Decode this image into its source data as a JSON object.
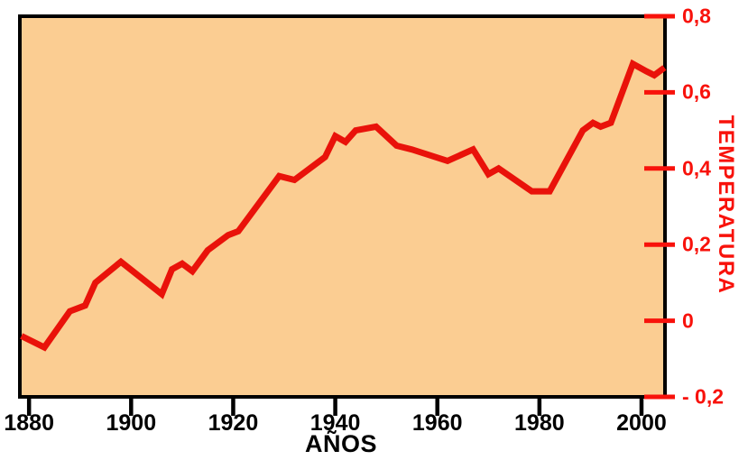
{
  "chart_data": {
    "type": "line",
    "title": "",
    "xlabel": "AÑOS",
    "ylabel": "TEMPERATURA",
    "xlim": [
      1878.2,
      2004.6
    ],
    "ylim": [
      -0.2,
      0.8
    ],
    "grid": false,
    "legend": false,
    "x_ticks": [
      {
        "value": 1880,
        "label": "1880"
      },
      {
        "value": 1900,
        "label": "1900"
      },
      {
        "value": 1920,
        "label": "1920"
      },
      {
        "value": 1940,
        "label": "1940"
      },
      {
        "value": 1960,
        "label": "1960"
      },
      {
        "value": 1980,
        "label": "1980"
      },
      {
        "value": 2000,
        "label": "2000"
      }
    ],
    "y_ticks": [
      {
        "value": 0.8,
        "label": "0,8"
      },
      {
        "value": 0.6,
        "label": "0,6"
      },
      {
        "value": 0.4,
        "label": "0,4"
      },
      {
        "value": 0.2,
        "label": "0,2"
      },
      {
        "value": 0,
        "label": "0"
      },
      {
        "value": -0.2,
        "label": "- 0,2"
      }
    ],
    "series": [
      {
        "name": "temperatura",
        "points": [
          [
            1878.5,
            -0.04
          ],
          [
            1883,
            -0.07
          ],
          [
            1888,
            0.025
          ],
          [
            1891,
            0.04
          ],
          [
            1893,
            0.1
          ],
          [
            1898,
            0.155
          ],
          [
            1906,
            0.07
          ],
          [
            1908,
            0.135
          ],
          [
            1910,
            0.15
          ],
          [
            1912,
            0.13
          ],
          [
            1915,
            0.185
          ],
          [
            1919,
            0.225
          ],
          [
            1921,
            0.235
          ],
          [
            1929,
            0.38
          ],
          [
            1932,
            0.37
          ],
          [
            1938,
            0.43
          ],
          [
            1940,
            0.485
          ],
          [
            1942,
            0.47
          ],
          [
            1944,
            0.5
          ],
          [
            1948,
            0.51
          ],
          [
            1952,
            0.46
          ],
          [
            1955,
            0.45
          ],
          [
            1962,
            0.42
          ],
          [
            1967,
            0.45
          ],
          [
            1970,
            0.385
          ],
          [
            1972,
            0.4
          ],
          [
            1978.5,
            0.34
          ],
          [
            1982,
            0.34
          ],
          [
            1988.5,
            0.5
          ],
          [
            1990.5,
            0.52
          ],
          [
            1992,
            0.51
          ],
          [
            1994,
            0.52
          ],
          [
            1998.3,
            0.675
          ],
          [
            2001,
            0.655
          ],
          [
            2002.5,
            0.645
          ],
          [
            2004.5,
            0.665
          ]
        ]
      }
    ],
    "colors": {
      "line": "#e9120a",
      "tick_labels_red": "#f8120b",
      "tick_labels_black": "#000000",
      "plot_background": "#fbcd92",
      "axis": "#000000",
      "page_background": "#ffffff"
    }
  }
}
